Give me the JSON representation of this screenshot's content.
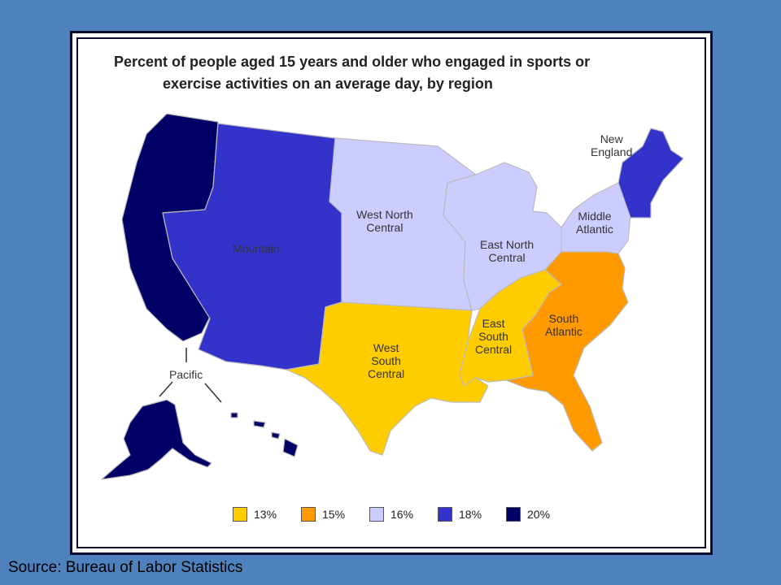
{
  "title_line1": "Percent of people aged 15 years and older who engaged in sports or",
  "title_line2": "exercise activities on an average day, by region",
  "source": "Source: Bureau of Labor Statistics",
  "colors": {
    "p13": "#ffcc00",
    "p15": "#ff9900",
    "p16": "#ccccff",
    "p18": "#3333cc",
    "p20": "#000066"
  },
  "regions": {
    "pacific": {
      "label": "Pacific",
      "value": "20%"
    },
    "mountain": {
      "label": "Mountain",
      "value": "18%"
    },
    "west_north_central": {
      "label_1": "West North",
      "label_2": "Central",
      "value": "16%"
    },
    "east_north_central": {
      "label_1": "East North",
      "label_2": "Central",
      "value": "16%"
    },
    "middle_atlantic": {
      "label_1": "Middle",
      "label_2": "Atlantic",
      "value": "16%"
    },
    "new_england": {
      "label_1": "New",
      "label_2": "England",
      "value": "18%"
    },
    "west_south_central": {
      "label_1": "West",
      "label_2": "South",
      "label_3": "Central",
      "value": "13%"
    },
    "east_south_central": {
      "label_1": "East",
      "label_2": "South",
      "label_3": "Central",
      "value": "13%"
    },
    "south_atlantic": {
      "label_1": "South",
      "label_2": "Atlantic",
      "value": "15%"
    }
  },
  "legend": [
    {
      "label": "13%",
      "color": "#ffcc00"
    },
    {
      "label": "15%",
      "color": "#ff9900"
    },
    {
      "label": "16%",
      "color": "#ccccff"
    },
    {
      "label": "18%",
      "color": "#3333cc"
    },
    {
      "label": "20%",
      "color": "#000066"
    }
  ]
}
